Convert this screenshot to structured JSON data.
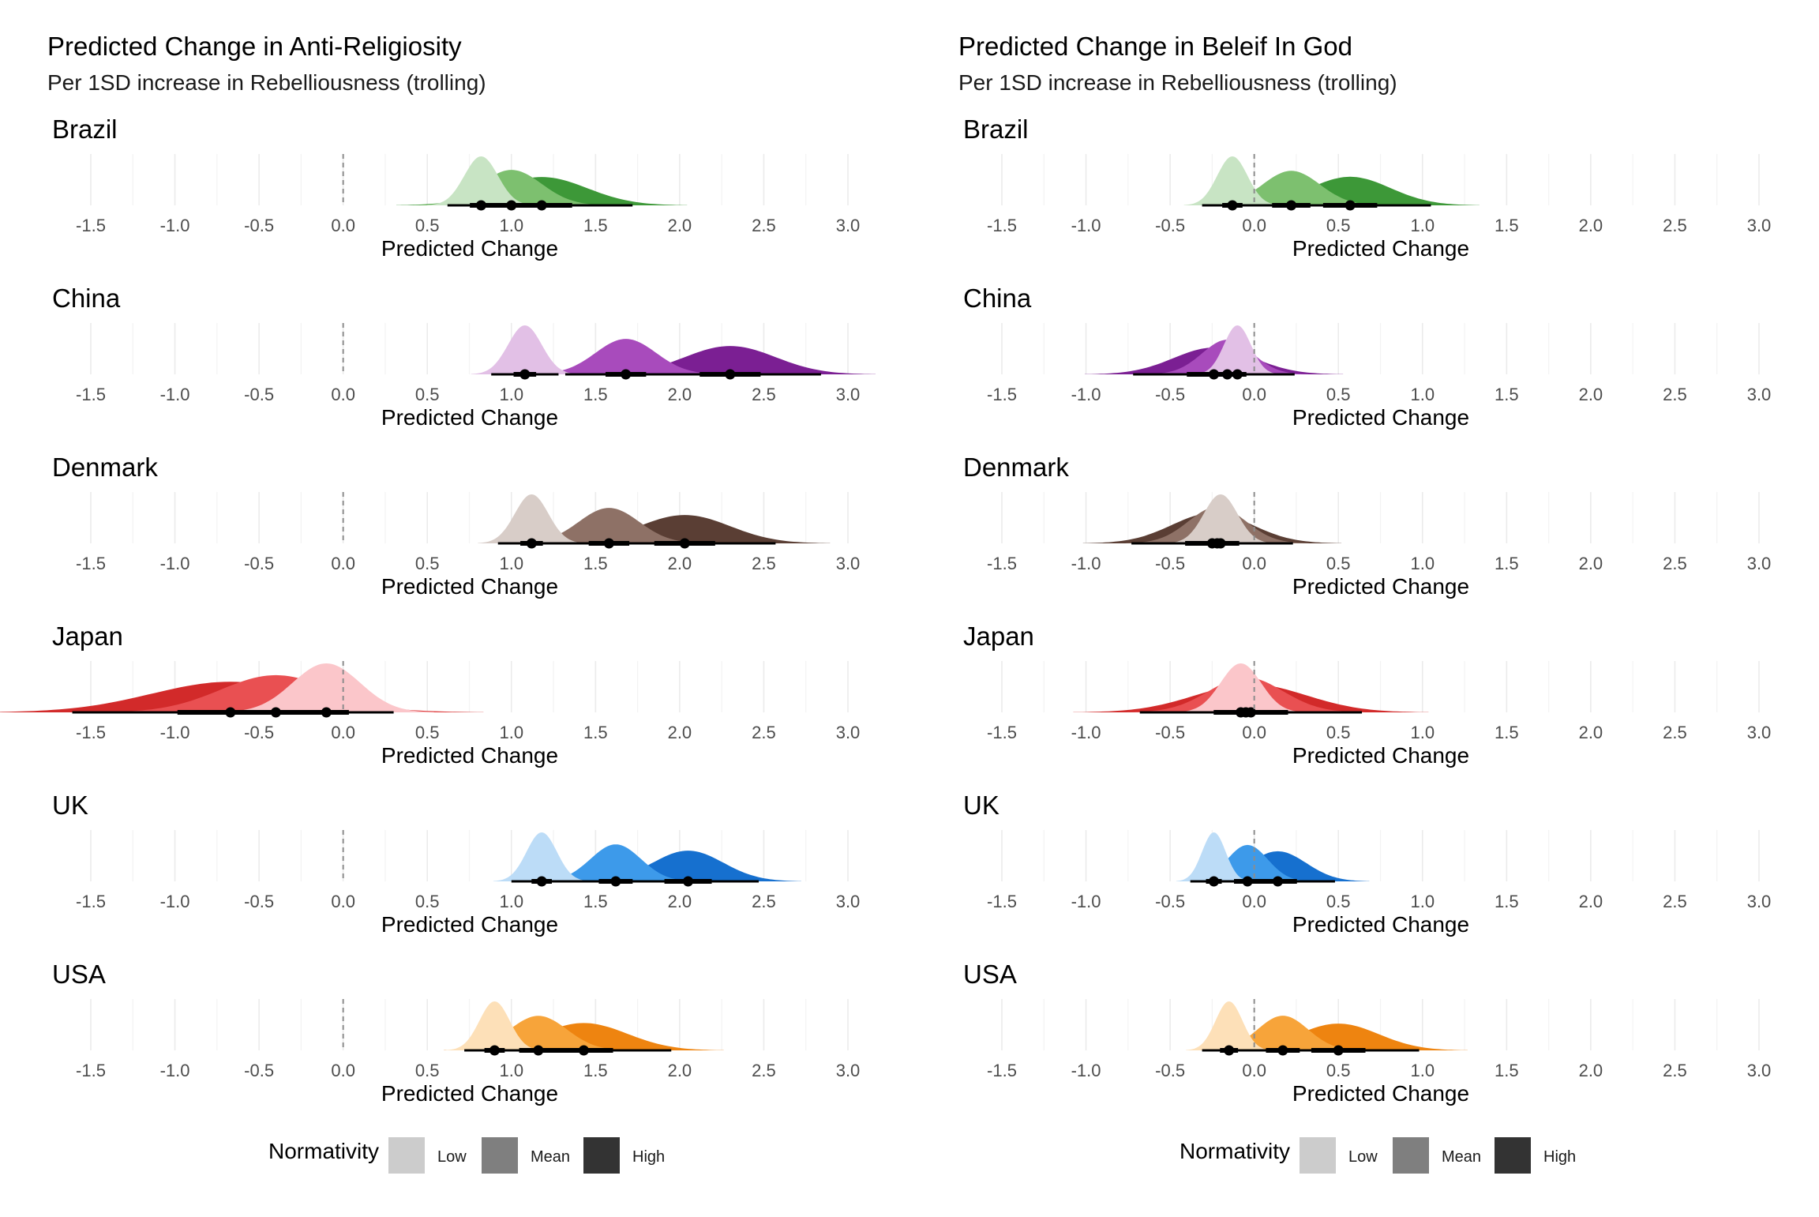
{
  "chart_data": [
    {
      "type": "density",
      "title": "Predicted Change in Anti-Religiosity",
      "subtitle": "Per 1SD increase in Rebelliousness (trolling)",
      "xlabel": "Predicted Change",
      "xlim": [
        -1.5,
        3.0
      ],
      "x_ticks": [
        "-1.5",
        "-1.0",
        "-0.5",
        "0.0",
        "0.5",
        "1.0",
        "1.5",
        "2.0",
        "2.5",
        "3.0"
      ],
      "reference_line": 0.0,
      "grid": "vertical",
      "legend": {
        "title": "Normativity",
        "position": "bottom",
        "entries": [
          "Low",
          "Mean",
          "High"
        ]
      },
      "facets": [
        {
          "label": "Brazil",
          "base_color": "#4a9e3f",
          "series": [
            {
              "normativity": "Low",
              "mean": 0.82,
              "sd": 0.1,
              "color": "#c8e4c4"
            },
            {
              "normativity": "Mean",
              "mean": 1.0,
              "sd": 0.18,
              "color": "#7dc06f"
            },
            {
              "normativity": "High",
              "mean": 1.18,
              "sd": 0.27,
              "color": "#3d9838"
            }
          ]
        },
        {
          "label": "China",
          "base_color": "#8a2aa0",
          "series": [
            {
              "normativity": "Low",
              "mean": 1.08,
              "sd": 0.1,
              "color": "#e2c0e6"
            },
            {
              "normativity": "Mean",
              "mean": 1.68,
              "sd": 0.18,
              "color": "#a84bbc"
            },
            {
              "normativity": "High",
              "mean": 2.3,
              "sd": 0.27,
              "color": "#7b1f93"
            }
          ]
        },
        {
          "label": "Denmark",
          "base_color": "#6b4d42",
          "series": [
            {
              "normativity": "Low",
              "mean": 1.12,
              "sd": 0.1,
              "color": "#d8cdc8"
            },
            {
              "normativity": "Mean",
              "mean": 1.58,
              "sd": 0.18,
              "color": "#8e7166"
            },
            {
              "normativity": "High",
              "mean": 2.03,
              "sd": 0.27,
              "color": "#5a3e34"
            }
          ]
        },
        {
          "label": "Japan",
          "base_color": "#d42a2a",
          "series": [
            {
              "normativity": "Low",
              "mean": -0.1,
              "sd": 0.2,
              "color": "#fbc6ca"
            },
            {
              "normativity": "Mean",
              "mean": -0.4,
              "sd": 0.33,
              "color": "#e95052"
            },
            {
              "normativity": "High",
              "mean": -0.67,
              "sd": 0.47,
              "color": "#d22a2a"
            }
          ]
        },
        {
          "label": "UK",
          "base_color": "#1f78d1",
          "series": [
            {
              "normativity": "Low",
              "mean": 1.18,
              "sd": 0.09,
              "color": "#bcdcf7"
            },
            {
              "normativity": "Mean",
              "mean": 1.62,
              "sd": 0.15,
              "color": "#3d9aea"
            },
            {
              "normativity": "High",
              "mean": 2.05,
              "sd": 0.21,
              "color": "#1670cf"
            }
          ]
        },
        {
          "label": "USA",
          "base_color": "#f08a12",
          "series": [
            {
              "normativity": "Low",
              "mean": 0.9,
              "sd": 0.09,
              "color": "#fde0b8"
            },
            {
              "normativity": "Mean",
              "mean": 1.16,
              "sd": 0.17,
              "color": "#f7a43a"
            },
            {
              "normativity": "High",
              "mean": 1.43,
              "sd": 0.26,
              "color": "#ee8410"
            }
          ]
        }
      ]
    },
    {
      "type": "density",
      "title": "Predicted Change in Beleif In God",
      "subtitle": "Per 1SD increase in Rebelliousness (trolling)",
      "xlabel": "Predicted Change",
      "xlim": [
        -1.5,
        3.0
      ],
      "x_ticks": [
        "-1.5",
        "-1.0",
        "-0.5",
        "0.0",
        "0.5",
        "1.0",
        "1.5",
        "2.0",
        "2.5",
        "3.0"
      ],
      "reference_line": 0.0,
      "grid": "vertical",
      "legend": {
        "title": "Normativity",
        "position": "bottom",
        "entries": [
          "Low",
          "Mean",
          "High"
        ]
      },
      "facets": [
        {
          "label": "Brazil",
          "base_color": "#4a9e3f",
          "series": [
            {
              "normativity": "Low",
              "mean": -0.13,
              "sd": 0.09,
              "color": "#c8e4c4"
            },
            {
              "normativity": "Mean",
              "mean": 0.22,
              "sd": 0.17,
              "color": "#7dc06f"
            },
            {
              "normativity": "High",
              "mean": 0.57,
              "sd": 0.24,
              "color": "#3d9838"
            }
          ]
        },
        {
          "label": "China",
          "base_color": "#8a2aa0",
          "series": [
            {
              "normativity": "Low",
              "mean": -0.1,
              "sd": 0.08,
              "color": "#e2c0e6"
            },
            {
              "normativity": "Mean",
              "mean": -0.16,
              "sd": 0.15,
              "color": "#a84bbc"
            },
            {
              "normativity": "High",
              "mean": -0.24,
              "sd": 0.24,
              "color": "#7b1f93"
            }
          ]
        },
        {
          "label": "Denmark",
          "base_color": "#6b4d42",
          "series": [
            {
              "normativity": "Low",
              "mean": -0.2,
              "sd": 0.1,
              "color": "#d8cdc8"
            },
            {
              "normativity": "Mean",
              "mean": -0.22,
              "sd": 0.17,
              "color": "#8e7166"
            },
            {
              "normativity": "High",
              "mean": -0.25,
              "sd": 0.24,
              "color": "#5a3e34"
            }
          ]
        },
        {
          "label": "Japan",
          "base_color": "#d42a2a",
          "series": [
            {
              "normativity": "Low",
              "mean": -0.08,
              "sd": 0.12,
              "color": "#fbc6ca"
            },
            {
              "normativity": "Mean",
              "mean": -0.05,
              "sd": 0.22,
              "color": "#e95052"
            },
            {
              "normativity": "High",
              "mean": -0.02,
              "sd": 0.33,
              "color": "#d22a2a"
            }
          ]
        },
        {
          "label": "UK",
          "base_color": "#1f78d1",
          "series": [
            {
              "normativity": "Low",
              "mean": -0.24,
              "sd": 0.07,
              "color": "#bcdcf7"
            },
            {
              "normativity": "Mean",
              "mean": -0.04,
              "sd": 0.12,
              "color": "#3d9aea"
            },
            {
              "normativity": "High",
              "mean": 0.14,
              "sd": 0.17,
              "color": "#1670cf"
            }
          ]
        },
        {
          "label": "USA",
          "base_color": "#f08a12",
          "series": [
            {
              "normativity": "Low",
              "mean": -0.15,
              "sd": 0.08,
              "color": "#fde0b8"
            },
            {
              "normativity": "Mean",
              "mean": 0.17,
              "sd": 0.15,
              "color": "#f7a43a"
            },
            {
              "normativity": "High",
              "mean": 0.5,
              "sd": 0.24,
              "color": "#ee8410"
            }
          ]
        }
      ]
    }
  ]
}
